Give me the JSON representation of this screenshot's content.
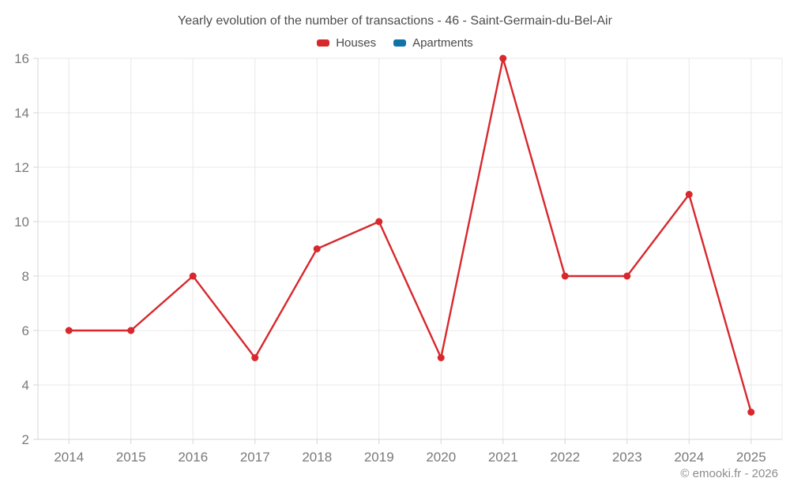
{
  "chart_data": {
    "type": "line",
    "title": "Yearly evolution of the number of transactions - 46 - Saint-Germain-du-Bel-Air",
    "categories": [
      "2014",
      "2015",
      "2016",
      "2017",
      "2018",
      "2019",
      "2020",
      "2021",
      "2022",
      "2023",
      "2024",
      "2025"
    ],
    "series": [
      {
        "name": "Houses",
        "color": "#d7282d",
        "values": [
          6,
          6,
          8,
          5,
          9,
          10,
          5,
          16,
          8,
          8,
          11,
          3
        ]
      },
      {
        "name": "Apartments",
        "color": "#0f73a8",
        "values": []
      }
    ],
    "xlabel": "",
    "ylabel": "",
    "ylim": [
      2,
      16
    ],
    "yticks": [
      2,
      4,
      6,
      8,
      10,
      12,
      14,
      16
    ],
    "grid": true,
    "legend_position": "top"
  },
  "colors": {
    "houses_accent": "#d7282d",
    "apartments_accent": "#0f73a8",
    "grid_line": "#e8e8e8",
    "axis_line": "#d6d6d6",
    "tick_label": "#7a7a7a",
    "title_text": "#4d4d4d",
    "footer_text": "#8c8c8c"
  },
  "footer": {
    "copyright": "© emooki.fr - 2026"
  }
}
